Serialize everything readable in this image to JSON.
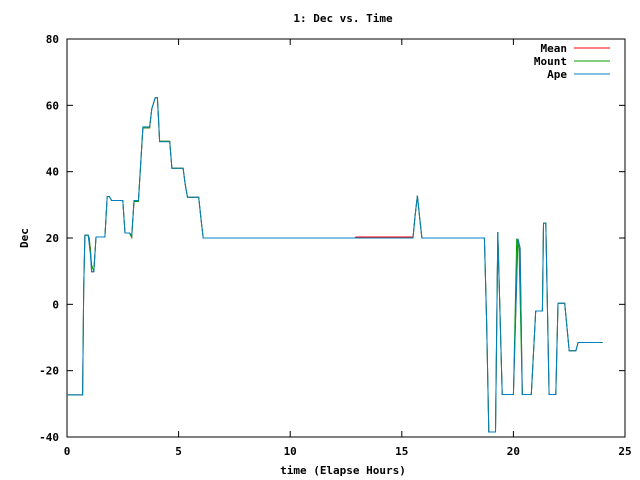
{
  "chart_data": {
    "type": "line",
    "title": "1: Dec vs. Time",
    "xlabel": "time (Elapse Hours)",
    "ylabel": "Dec",
    "xlim": [
      0,
      25
    ],
    "ylim": [
      -40,
      80
    ],
    "xticks": [
      0,
      5,
      10,
      15,
      20,
      25
    ],
    "yticks": [
      -40,
      -20,
      0,
      20,
      40,
      60,
      80
    ],
    "grid": false,
    "legend_position": "top-right",
    "series": [
      {
        "name": "Mean",
        "color": "#ff0000",
        "points": [
          [
            0,
            -27.3
          ],
          [
            0.7,
            -27.3
          ],
          [
            0.75,
            5
          ],
          [
            0.8,
            20.8
          ],
          [
            0.95,
            20.8
          ],
          [
            1.05,
            17
          ],
          [
            1.1,
            9.8
          ],
          [
            1.2,
            9.8
          ],
          [
            1.3,
            20.3
          ],
          [
            1.7,
            20.3
          ],
          [
            1.8,
            32.5
          ],
          [
            1.9,
            32.5
          ],
          [
            2.0,
            31.3
          ],
          [
            2.5,
            31.3
          ],
          [
            2.6,
            21.5
          ],
          [
            2.8,
            21.5
          ],
          [
            2.9,
            20.2
          ],
          [
            3.0,
            31
          ],
          [
            3.2,
            31
          ],
          [
            3.4,
            53.2
          ],
          [
            3.7,
            53.2
          ],
          [
            3.8,
            59
          ],
          [
            3.95,
            62.3
          ],
          [
            4.05,
            62.3
          ],
          [
            4.1,
            56
          ],
          [
            4.15,
            49.2
          ],
          [
            4.6,
            49.2
          ],
          [
            4.7,
            41
          ],
          [
            5.2,
            41
          ],
          [
            5.3,
            36
          ],
          [
            5.4,
            32.3
          ],
          [
            5.9,
            32.3
          ],
          [
            6.0,
            26
          ],
          [
            6.1,
            20
          ],
          [
            12.9,
            20
          ],
          [
            12.95,
            20.3
          ],
          [
            15.5,
            20.3
          ],
          [
            15.6,
            27
          ],
          [
            15.7,
            32.8
          ],
          [
            15.8,
            26
          ],
          [
            15.9,
            20
          ],
          [
            18.7,
            20
          ],
          [
            18.8,
            -5
          ],
          [
            18.9,
            -38.5
          ],
          [
            19.2,
            -38.5
          ],
          [
            19.3,
            21.8
          ],
          [
            19.5,
            -27.2
          ],
          [
            20.0,
            -27.2
          ],
          [
            20.2,
            19.8
          ],
          [
            20.3,
            17
          ],
          [
            20.4,
            -27.2
          ],
          [
            20.8,
            -27.2
          ],
          [
            21.0,
            -2
          ],
          [
            21.3,
            -2
          ],
          [
            21.35,
            24.5
          ],
          [
            21.45,
            24.5
          ],
          [
            21.6,
            -27.2
          ],
          [
            21.9,
            -27.2
          ],
          [
            22.0,
            0.3
          ],
          [
            22.3,
            0.3
          ],
          [
            22.5,
            -14
          ],
          [
            22.8,
            -14
          ],
          [
            22.9,
            -11.5
          ],
          [
            24,
            -11.5
          ]
        ]
      },
      {
        "name": "Mount",
        "color": "#00a000",
        "points": [
          [
            0,
            -27.3
          ],
          [
            0.7,
            -27.3
          ],
          [
            0.75,
            5
          ],
          [
            0.8,
            20.8
          ],
          [
            0.95,
            20.8
          ],
          [
            1.0,
            20
          ],
          [
            1.1,
            12
          ],
          [
            1.2,
            9.8
          ],
          [
            1.3,
            20.3
          ],
          [
            1.7,
            20.3
          ],
          [
            1.8,
            32.5
          ],
          [
            1.9,
            32.5
          ],
          [
            2.0,
            31.3
          ],
          [
            2.5,
            31.3
          ],
          [
            2.6,
            21.5
          ],
          [
            2.8,
            21.5
          ],
          [
            2.9,
            20.2
          ],
          [
            3.0,
            31
          ],
          [
            3.2,
            31
          ],
          [
            3.4,
            53.2
          ],
          [
            3.7,
            53.2
          ],
          [
            3.8,
            59
          ],
          [
            3.95,
            62.3
          ],
          [
            4.05,
            62.3
          ],
          [
            4.1,
            56
          ],
          [
            4.15,
            49.2
          ],
          [
            4.6,
            49.2
          ],
          [
            4.7,
            41
          ],
          [
            5.2,
            41
          ],
          [
            5.3,
            36
          ],
          [
            5.4,
            32.3
          ],
          [
            5.9,
            32.3
          ],
          [
            6.0,
            26
          ],
          [
            6.1,
            20
          ],
          [
            15.5,
            20
          ],
          [
            15.6,
            27
          ],
          [
            15.7,
            32.8
          ],
          [
            15.8,
            26
          ],
          [
            15.9,
            20
          ],
          [
            18.7,
            20
          ],
          [
            18.8,
            -5
          ],
          [
            18.9,
            -38.5
          ],
          [
            19.2,
            -38.5
          ],
          [
            19.3,
            21.8
          ],
          [
            19.5,
            -27.2
          ],
          [
            20.0,
            -27.2
          ],
          [
            20.15,
            19.8
          ],
          [
            20.25,
            17
          ],
          [
            20.4,
            -27.2
          ],
          [
            20.8,
            -27.2
          ],
          [
            21.0,
            -2
          ],
          [
            21.3,
            -2
          ],
          [
            21.35,
            24.5
          ],
          [
            21.45,
            24.5
          ],
          [
            21.6,
            -27.2
          ],
          [
            21.9,
            -27.2
          ],
          [
            22.0,
            0.3
          ],
          [
            22.3,
            0.3
          ],
          [
            22.5,
            -14
          ],
          [
            22.8,
            -14
          ],
          [
            22.9,
            -11.5
          ],
          [
            24,
            -11.5
          ]
        ]
      },
      {
        "name": "Ape",
        "color": "#0080c0",
        "points": [
          [
            0,
            -27.3
          ],
          [
            0.7,
            -27.3
          ],
          [
            0.75,
            5
          ],
          [
            0.8,
            20.8
          ],
          [
            0.95,
            20.8
          ],
          [
            1.05,
            15
          ],
          [
            1.1,
            9.8
          ],
          [
            1.2,
            9.8
          ],
          [
            1.3,
            20.3
          ],
          [
            1.7,
            20.3
          ],
          [
            1.8,
            32.5
          ],
          [
            1.9,
            32.5
          ],
          [
            2.0,
            31.3
          ],
          [
            2.5,
            31.3
          ],
          [
            2.6,
            21.5
          ],
          [
            2.8,
            21.5
          ],
          [
            2.9,
            20.8
          ],
          [
            3.0,
            31.3
          ],
          [
            3.2,
            31.3
          ],
          [
            3.4,
            53.5
          ],
          [
            3.7,
            53.5
          ],
          [
            3.8,
            59
          ],
          [
            3.95,
            62.3
          ],
          [
            4.05,
            62.3
          ],
          [
            4.1,
            56
          ],
          [
            4.15,
            49
          ],
          [
            4.6,
            49
          ],
          [
            4.7,
            41
          ],
          [
            5.2,
            41
          ],
          [
            5.3,
            36
          ],
          [
            5.4,
            32.3
          ],
          [
            5.9,
            32.3
          ],
          [
            6.0,
            26
          ],
          [
            6.1,
            20
          ],
          [
            15.5,
            20
          ],
          [
            15.6,
            27
          ],
          [
            15.7,
            32.8
          ],
          [
            15.8,
            26
          ],
          [
            15.9,
            20
          ],
          [
            18.7,
            20
          ],
          [
            18.8,
            -5
          ],
          [
            18.9,
            -38.5
          ],
          [
            19.2,
            -38.5
          ],
          [
            19.3,
            21.8
          ],
          [
            19.5,
            -27.2
          ],
          [
            20.0,
            -27.2
          ],
          [
            20.2,
            19.8
          ],
          [
            20.3,
            17
          ],
          [
            20.4,
            -27.2
          ],
          [
            20.8,
            -27.2
          ],
          [
            21.0,
            -2
          ],
          [
            21.3,
            -2
          ],
          [
            21.35,
            24.5
          ],
          [
            21.45,
            24.5
          ],
          [
            21.6,
            -27.2
          ],
          [
            21.9,
            -27.2
          ],
          [
            22.0,
            0.3
          ],
          [
            22.3,
            0.3
          ],
          [
            22.5,
            -14
          ],
          [
            22.8,
            -14
          ],
          [
            22.9,
            -11.5
          ],
          [
            24,
            -11.5
          ]
        ]
      }
    ]
  }
}
